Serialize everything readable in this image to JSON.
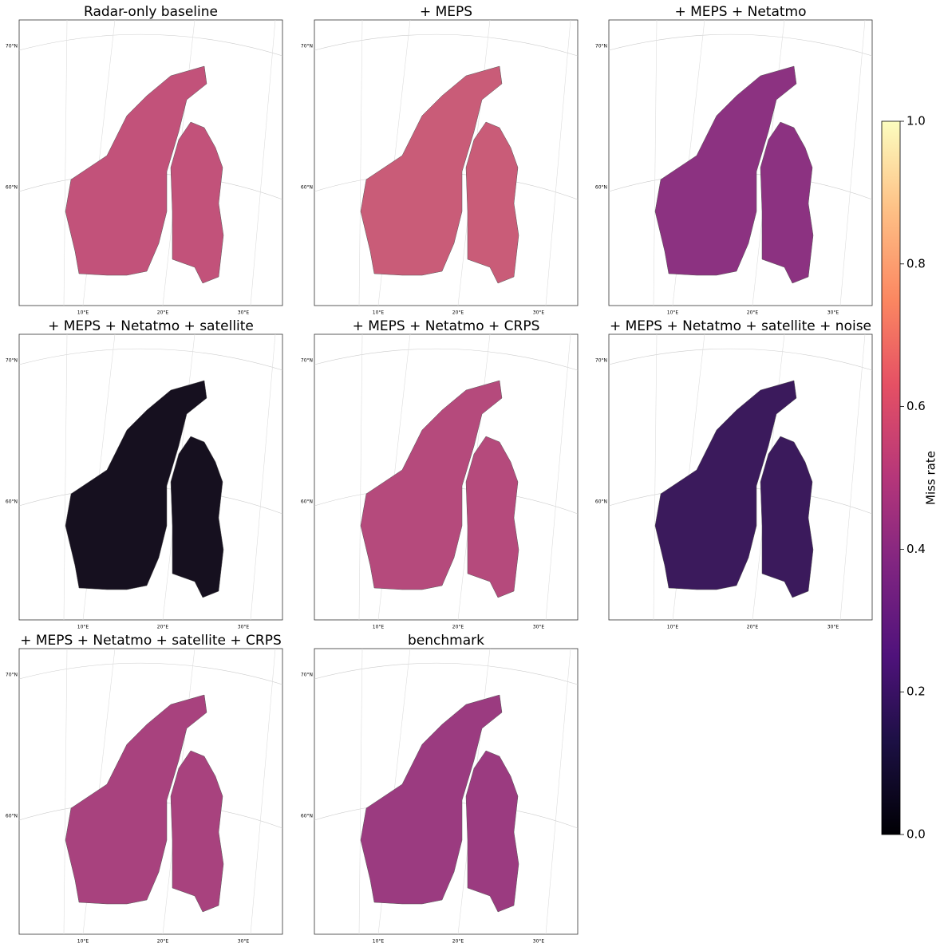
{
  "figure": {
    "panels": [
      {
        "title": "Radar-only baseline",
        "color": "#c2527a"
      },
      {
        "title": "+ MEPS",
        "color": "#c95c78"
      },
      {
        "title": "+ MEPS + Netatmo",
        "color": "#8c3281"
      },
      {
        "title": "+ MEPS + Netatmo + satellite",
        "color": "#16101f"
      },
      {
        "title": "+ MEPS + Netatmo + CRPS",
        "color": "#b54a7c"
      },
      {
        "title": "+ MEPS + Netatmo + satellite + noise",
        "color": "#3b1a5c"
      },
      {
        "title": "+ MEPS + Netatmo + satellite + CRPS",
        "color": "#a8427e"
      },
      {
        "title": "benchmark",
        "color": "#9b3b80"
      }
    ],
    "lat_labels": [
      "70°N",
      "60°N"
    ],
    "lon_labels": [
      "10°E",
      "20°E",
      "30°E"
    ],
    "colorbar": {
      "label": "Miss rate",
      "lim": [
        0,
        1
      ],
      "ticks": [
        {
          "value": 0,
          "label": "0.0"
        },
        {
          "value": 0.2,
          "label": "0.2"
        },
        {
          "value": 0.4,
          "label": "0.4"
        },
        {
          "value": 0.6,
          "label": "0.6"
        },
        {
          "value": 0.8,
          "label": "0.8"
        },
        {
          "value": 1,
          "label": "1.0"
        }
      ]
    }
  }
}
